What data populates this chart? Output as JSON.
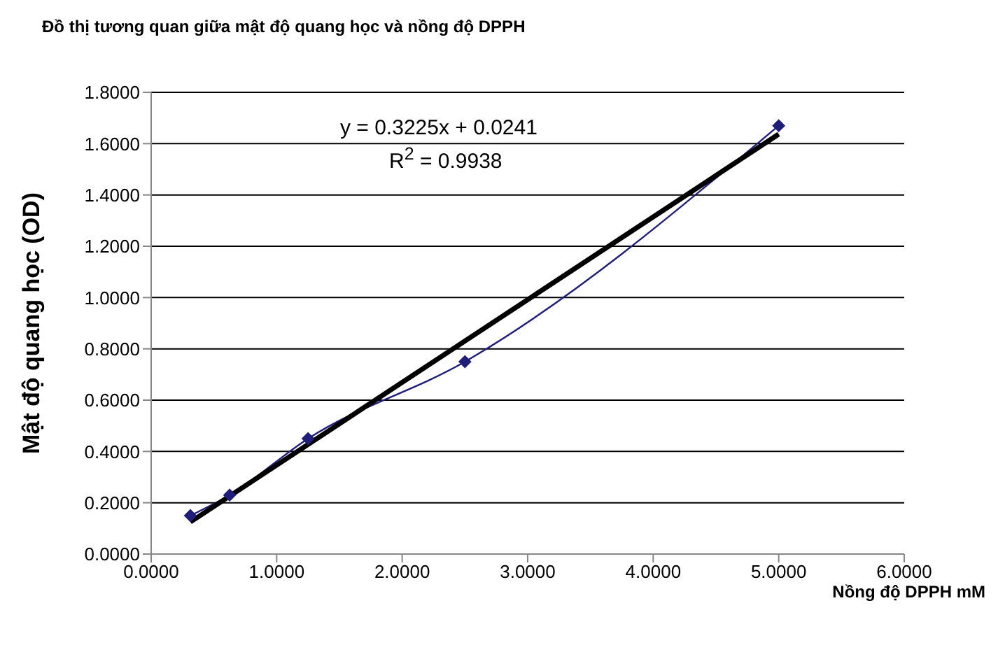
{
  "chart_data": {
    "type": "line",
    "title": "Đồ thị tương quan giữa mật độ quang học và nồng độ DPPH",
    "xlabel": "Nồng độ DPPH mM",
    "ylabel": "Mật độ quang học (OD)",
    "annotations": [
      "y = 0.3225x + 0.0241",
      "R$^{2}$ = 0.9938"
    ],
    "x": [
      0.3125,
      0.625,
      1.25,
      2.5,
      5
    ],
    "series": [
      {
        "color": "#1f1f7a",
        "values": [
          0.15,
          0.23,
          0.45,
          0.75,
          1.67
        ],
        "marker": "diamond"
      },
      {
        "color": "#000000",
        "x": [
          0.3125,
          5
        ],
        "values": [
          0.125,
          1.637
        ],
        "marker": "none"
      }
    ],
    "xlim": [
      0,
      6
    ],
    "xticks": [
      {
        "value": 0,
        "label": "0.0000"
      },
      {
        "value": 1,
        "label": "1.0000"
      },
      {
        "value": 2,
        "label": "2.0000"
      },
      {
        "value": 3,
        "label": "3.0000"
      },
      {
        "value": 4,
        "label": "4.0000"
      },
      {
        "value": 5,
        "label": "5.0000"
      },
      {
        "value": 6,
        "label": "6.0000"
      }
    ],
    "ylim": [
      0,
      1.8
    ],
    "yticks": [
      {
        "value": 0,
        "label": "0.0000"
      },
      {
        "value": 0.2,
        "label": "0.2000"
      },
      {
        "value": 0.4,
        "label": "0.4000"
      },
      {
        "value": 0.6,
        "label": "0.6000"
      },
      {
        "value": 0.8,
        "label": "0.8000"
      },
      {
        "value": 1,
        "label": "1.0000"
      },
      {
        "value": 1.2,
        "label": "1.2000"
      },
      {
        "value": 1.4,
        "label": "1.4000"
      },
      {
        "value": 1.6,
        "label": "1.6000"
      },
      {
        "value": 1.8,
        "label": "1.8000"
      }
    ],
    "grid": "y"
  }
}
